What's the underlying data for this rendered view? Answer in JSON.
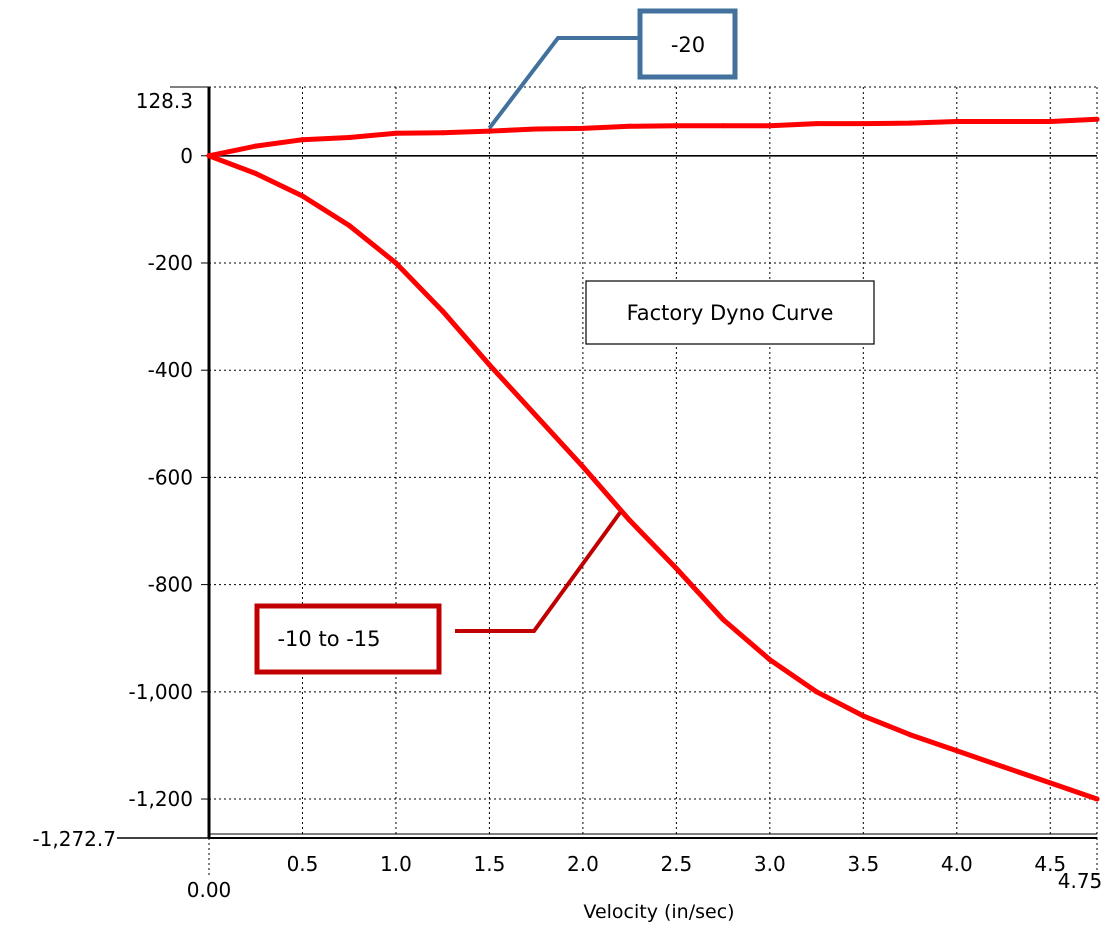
{
  "chart_data": {
    "type": "line",
    "title": "",
    "xlabel": "Velocity (in/sec)",
    "ylabel": "",
    "xlim": [
      0,
      4.75
    ],
    "ylim": [
      -1272.7,
      128.3
    ],
    "xlim_labels": [
      "0.00",
      "4.75"
    ],
    "ylim_labels": [
      "128.3",
      "-1,272.7"
    ],
    "x_ticks": [
      0.5,
      1.0,
      1.5,
      2.0,
      2.5,
      3.0,
      3.5,
      4.0,
      4.5
    ],
    "x_tick_labels": [
      "0.5",
      "1.0",
      "1.5",
      "2.0",
      "2.5",
      "3.0",
      "3.5",
      "4.0",
      "4.5"
    ],
    "y_ticks": [
      0,
      -200,
      -400,
      -600,
      -800,
      -1000,
      -1200
    ],
    "y_tick_labels": [
      "0",
      "-200",
      "-400",
      "-600",
      "-800",
      "-1,000",
      "-1,200"
    ],
    "grid": true,
    "series": [
      {
        "color": "#ff0000",
        "x": [
          0,
          0.25,
          0.5,
          0.75,
          1.0,
          1.25,
          1.5,
          1.75,
          2.0,
          2.25,
          2.5,
          2.75,
          3.0,
          3.25,
          3.5,
          3.75,
          4.0,
          4.25,
          4.5,
          4.75
        ],
        "y": [
          0,
          18,
          30,
          34,
          42,
          43,
          46,
          50,
          51,
          55,
          56,
          56,
          56,
          60,
          60,
          61,
          64,
          64,
          64,
          68
        ]
      },
      {
        "color": "#ff0000",
        "x": [
          0,
          0.25,
          0.5,
          0.75,
          1.0,
          1.25,
          1.5,
          1.75,
          2.0,
          2.25,
          2.5,
          2.75,
          3.0,
          3.25,
          3.5,
          3.75,
          4.0,
          4.25,
          4.5,
          4.75
        ],
        "y": [
          0,
          -33,
          -75,
          -130,
          -200,
          -290,
          -390,
          -485,
          -580,
          -680,
          -770,
          -865,
          -940,
          -1000,
          -1045,
          -1080,
          -1110,
          -1140,
          -1170,
          -1200
        ]
      }
    ],
    "annotations": [
      {
        "text": "Factory Dyno Curve",
        "box_color": "#000000"
      },
      {
        "text": "-20",
        "box_color": "#41719c",
        "target_x": 1.5,
        "target_y": 46
      },
      {
        "text": "-10 to -15",
        "box_color": "#c00000",
        "target_x": 2.2,
        "target_y": -665
      }
    ]
  }
}
